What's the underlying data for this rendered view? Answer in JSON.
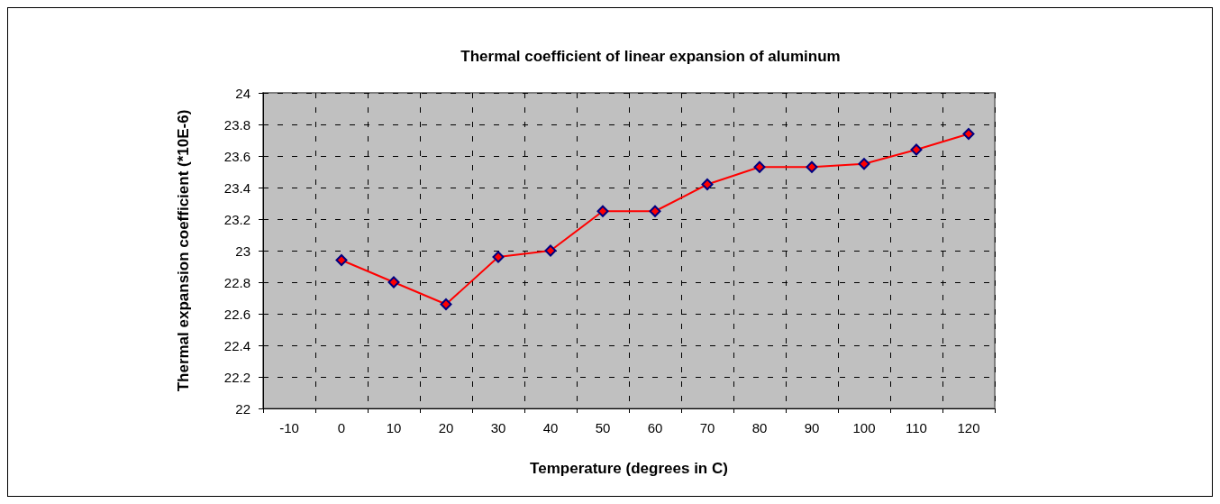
{
  "chart_data": {
    "type": "line",
    "title": "Thermal coefficient of linear expansion of aluminum",
    "xlabel": "Temperature (degrees in C)",
    "ylabel": "Thermal expansion coefficient (*10E-6)",
    "categories": [
      "-10",
      "0",
      "10",
      "20",
      "30",
      "40",
      "50",
      "60",
      "70",
      "80",
      "90",
      "100",
      "110",
      "120"
    ],
    "series": [
      {
        "color": "#ff0000",
        "values": [
          null,
          22.94,
          22.8,
          22.66,
          22.96,
          23.0,
          23.25,
          23.25,
          23.42,
          23.53,
          23.53,
          23.55,
          23.64,
          23.74
        ]
      }
    ],
    "ylim": [
      22,
      24
    ],
    "yticks": [
      22,
      22.2,
      22.4,
      22.6,
      22.8,
      23,
      23.2,
      23.4,
      23.6,
      23.8,
      24
    ],
    "grid": true,
    "marker": "diamond",
    "line_style": "solid"
  }
}
